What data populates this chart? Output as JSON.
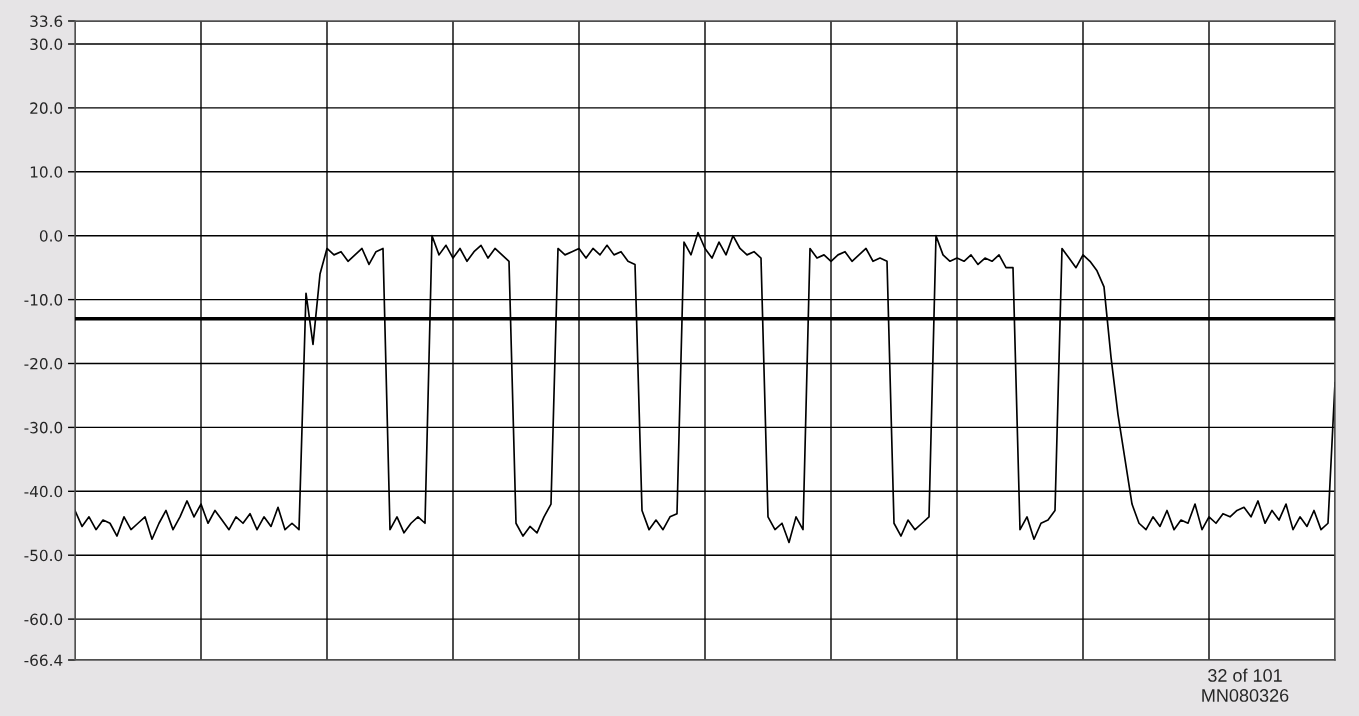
{
  "chart_data": {
    "type": "line",
    "categories": [
      null,
      null,
      null,
      null,
      null,
      null,
      null,
      null,
      null,
      null,
      null,
      null,
      null,
      null,
      null,
      null,
      null,
      null,
      null,
      null,
      null,
      null,
      null,
      null,
      null,
      null,
      null,
      null,
      null,
      null,
      null,
      null,
      null,
      null,
      null,
      null,
      null,
      null,
      null,
      null,
      null,
      null,
      null,
      null,
      null,
      null,
      null,
      null,
      null,
      null,
      null,
      null,
      null,
      null,
      null,
      null,
      null,
      null,
      null,
      null,
      null,
      null,
      null,
      null,
      null,
      null,
      null,
      null,
      null,
      null,
      null,
      null,
      null,
      null,
      null,
      null,
      null,
      null,
      null,
      null,
      null,
      null,
      null,
      null,
      null,
      null,
      null,
      null,
      null,
      null,
      null,
      null,
      null,
      null,
      null,
      null,
      null,
      null,
      null,
      null,
      null,
      null,
      null,
      null,
      null,
      null,
      null,
      null,
      null,
      null,
      null,
      null,
      null,
      null,
      null,
      null,
      null,
      null,
      null,
      null,
      null,
      null,
      null,
      null,
      null,
      null,
      null,
      null,
      null,
      null,
      null,
      null,
      null,
      null,
      null,
      null,
      null,
      null,
      null,
      null,
      null,
      null,
      null,
      null,
      null,
      null,
      null,
      null,
      null,
      null,
      null,
      null,
      null,
      null,
      null,
      null,
      null,
      null,
      null,
      null,
      null,
      null,
      null,
      null,
      null,
      null,
      null,
      null,
      null,
      null,
      null,
      null,
      null,
      null,
      null,
      null,
      null,
      null,
      null,
      null,
      null
    ],
    "series": [
      {
        "color": "#000000",
        "values": [
          -43,
          -45.5,
          -44,
          -46,
          -44.5,
          -45,
          -47,
          -44,
          -46,
          -45,
          -44,
          -47.5,
          -45,
          -43,
          -46,
          -44,
          -41.5,
          -44,
          -42,
          -45,
          -43,
          -44.5,
          -46,
          -44,
          -45,
          -43.5,
          -46,
          -44,
          -45.5,
          -42.5,
          -46,
          -45,
          -46,
          -9,
          -17,
          -6,
          -2,
          -3,
          -2.5,
          -4,
          -3,
          -2,
          -4.5,
          -2.5,
          -2,
          -46,
          -44,
          -46.5,
          -45,
          -44,
          -45,
          0,
          -3,
          -1.5,
          -3.5,
          -2,
          -4,
          -2.5,
          -1.5,
          -3.5,
          -2,
          -3,
          -4,
          -45,
          -47,
          -45.5,
          -46.5,
          -44,
          -42,
          -2,
          -3,
          -2.5,
          -2,
          -3.5,
          -2,
          -3,
          -1.5,
          -3,
          -2.5,
          -4,
          -4.5,
          -43,
          -46,
          -44.5,
          -46,
          -44,
          -43.5,
          -1,
          -3,
          0.5,
          -2,
          -3.5,
          -1,
          -3,
          0,
          -2,
          -3,
          -2.5,
          -3.5,
          -44,
          -46,
          -45,
          -48,
          -44,
          -46,
          -2,
          -3.5,
          -3,
          -4,
          -3,
          -2.5,
          -4,
          -3,
          -2,
          -4,
          -3.5,
          -4,
          -45,
          -47,
          -44.5,
          -46,
          -45,
          -44,
          0,
          -3,
          -4,
          -3.5,
          -4,
          -3,
          -4.5,
          -3.5,
          -4,
          -3,
          -5,
          -5,
          -46,
          -44,
          -47.5,
          -45,
          -44.5,
          -43,
          -2,
          -3.5,
          -5,
          -3,
          -4,
          -5.5,
          -8,
          -19,
          -28,
          -35,
          -42,
          -45,
          -46,
          -44,
          -45.5,
          -43,
          -46,
          -44.5,
          -45,
          -42,
          -46,
          -44,
          -45,
          -43.5,
          -44,
          -43,
          -42.5,
          -44,
          -41.5,
          -45,
          -43,
          -44.5,
          -42,
          -46,
          -44,
          -45.5,
          -43,
          -46,
          -45,
          -23
        ]
      }
    ],
    "ylim": [
      -66.4,
      33.6
    ],
    "yticks": [
      -66.4,
      {
        "value": -60,
        "label": "-60.0"
      },
      {
        "value": -50,
        "label": "-50.0"
      },
      {
        "value": -40,
        "label": "-40.0"
      },
      {
        "value": -30,
        "label": "-30.0"
      },
      {
        "value": -20,
        "label": "-20.0"
      },
      {
        "value": -10,
        "label": "-10.0"
      },
      {
        "value": 0,
        "label": "0.0"
      },
      {
        "value": 10,
        "label": "10.0"
      },
      {
        "value": 20,
        "label": "20.0"
      },
      {
        "value": 30,
        "label": "30.0"
      },
      33.6
    ],
    "ref_lines": [
      {
        "axis": "y",
        "value": -13,
        "color": "#000000"
      }
    ],
    "grid": true,
    "tick_labels": "y",
    "legend": false,
    "annotations": [
      "32 of 101",
      "MN080326"
    ]
  }
}
